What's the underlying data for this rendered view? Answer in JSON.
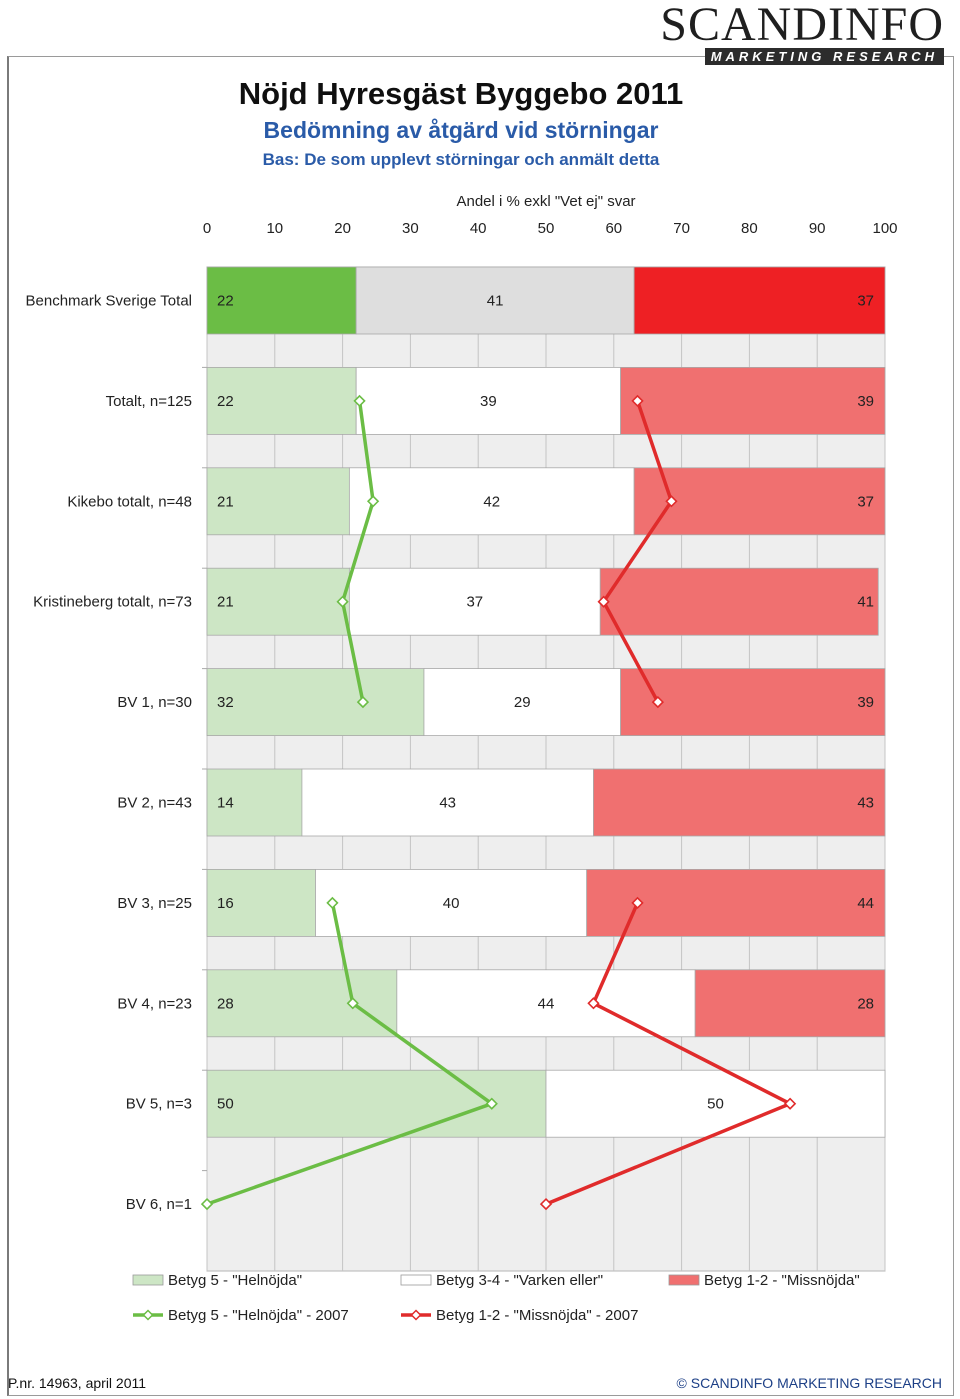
{
  "header": {
    "logo_main": "SCANDINFO",
    "logo_sub": "MARKETING RESEARCH",
    "title": "Nöjd Hyresgäst Byggebo 2011",
    "subtitle": "Bedömning av åtgärd vid störningar",
    "base": "Bas: De som upplevt störningar och anmält detta"
  },
  "footer": {
    "left": "P.nr. 14963, april 2011",
    "right": "© SCANDINFO MARKETING RESEARCH"
  },
  "chart_data": {
    "type": "bar",
    "stacked": true,
    "orientation": "horizontal",
    "xlabel": "Andel i % exkl \"Vet ej\" svar",
    "xlim": [
      0,
      100
    ],
    "xticks": [
      0,
      10,
      20,
      30,
      40,
      50,
      60,
      70,
      80,
      90,
      100
    ],
    "grid": true,
    "categories": [
      "Benchmark Sverige Total",
      "Totalt, n=125",
      "Kikebo totalt, n=48",
      "Kristineberg totalt, n=73",
      "BV 1, n=30",
      "BV 2, n=43",
      "BV 3, n=25",
      "BV 4, n=23",
      "BV 5, n=3",
      "BV 6, n=1"
    ],
    "series": [
      {
        "name": "Betyg 5 - \"Helnöjda\"",
        "values": [
          22,
          22,
          21,
          21,
          32,
          14,
          16,
          28,
          50,
          null
        ],
        "color": "#cde6c5",
        "benchmark_color": "#6bbd45"
      },
      {
        "name": "Betyg 3-4 - \"Varken eller\"",
        "values": [
          41,
          39,
          42,
          37,
          29,
          43,
          40,
          44,
          50,
          null
        ],
        "color": "#ffffff",
        "benchmark_color": "#dedede"
      },
      {
        "name": "Betyg 1-2 - \"Missnöjda\"",
        "values": [
          37,
          39,
          37,
          41,
          39,
          43,
          44,
          28,
          null,
          null
        ],
        "color": "#f07070",
        "benchmark_color": "#ee2024"
      }
    ],
    "lines": [
      {
        "name": "Betyg 5 - \"Helnöjda\" - 2007",
        "values": [
          null,
          22.5,
          24.5,
          20,
          23,
          null,
          18.5,
          21.5,
          42,
          0
        ],
        "color": "#6bbd45"
      },
      {
        "name": "Betyg 1-2 - \"Missnöjda\" - 2007",
        "values": [
          null,
          63.5,
          68.5,
          58.5,
          66.5,
          null,
          63.5,
          57,
          86,
          50
        ],
        "color": "#e02b2b"
      }
    ]
  }
}
